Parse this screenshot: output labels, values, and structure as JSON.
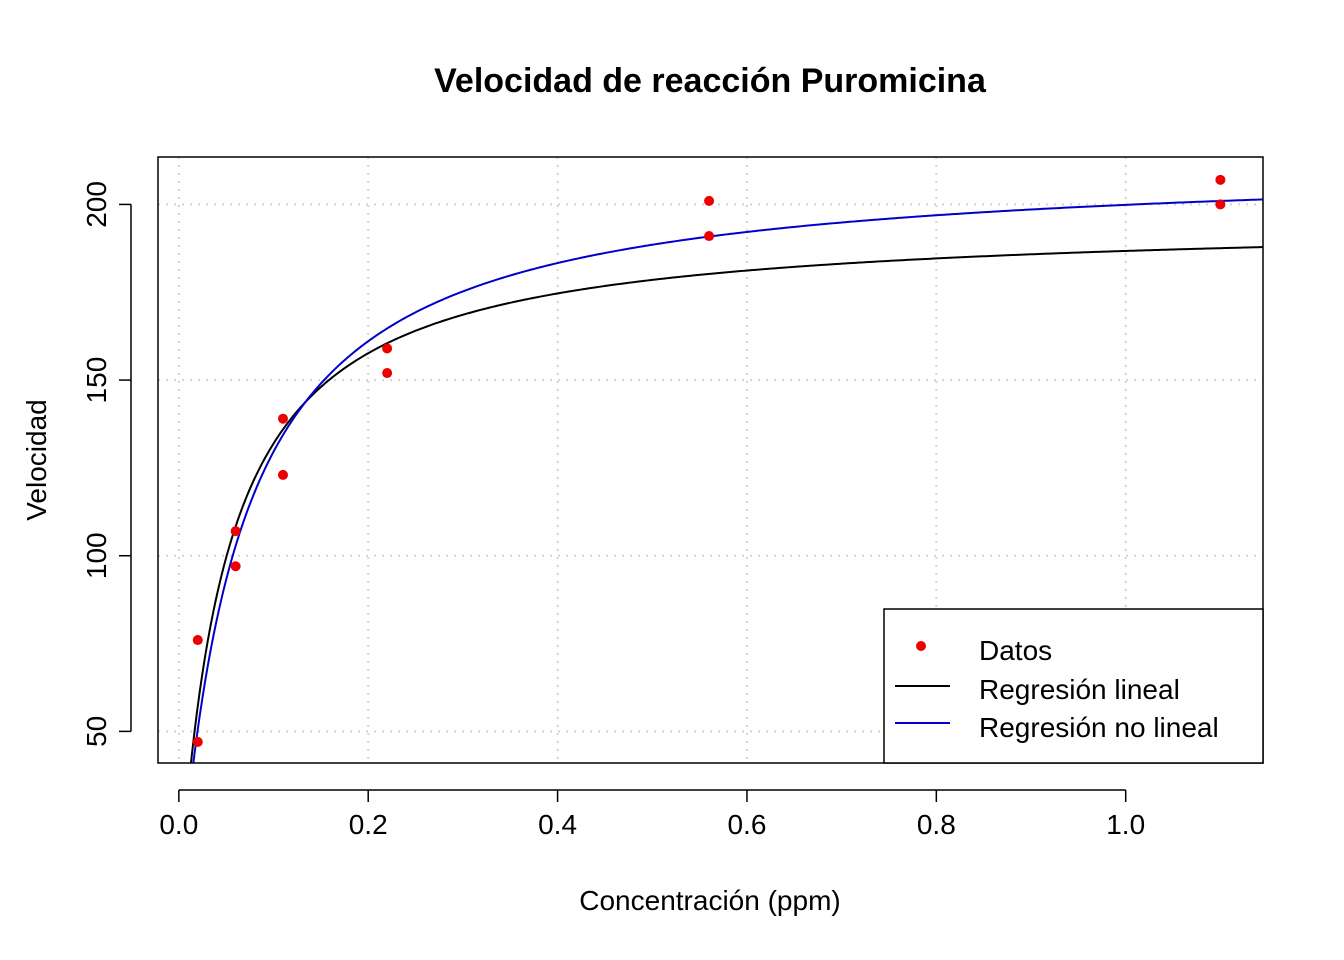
{
  "chart_data": {
    "type": "scatter",
    "title": "Velocidad de reacción Puromicina",
    "xlabel": "Concentración (ppm)",
    "ylabel": "Velocidad",
    "xlim": [
      -0.022,
      1.145
    ],
    "ylim": [
      41,
      213.5
    ],
    "x_ticks": [
      0.0,
      0.2,
      0.4,
      0.6,
      0.8,
      1.0
    ],
    "x_tick_labels": [
      "0.0",
      "0.2",
      "0.4",
      "0.6",
      "0.8",
      "1.0"
    ],
    "y_ticks": [
      50,
      100,
      150,
      200
    ],
    "y_tick_labels": [
      "50",
      "100",
      "150",
      "200"
    ],
    "grid": true,
    "legend_position": "bottom-right",
    "points": {
      "name": "Datos",
      "color": "#ee0000",
      "x": [
        0.02,
        0.02,
        0.06,
        0.06,
        0.11,
        0.11,
        0.22,
        0.22,
        0.56,
        0.56,
        1.1,
        1.1
      ],
      "y": [
        76,
        47,
        97,
        107,
        123,
        139,
        159,
        152,
        191,
        201,
        207,
        200
      ]
    },
    "curves": [
      {
        "name": "Regresión lineal",
        "color": "#000000",
        "vmax": 195.8,
        "km": 0.04841
      },
      {
        "name": "Regresión no lineal",
        "color": "#0000cc",
        "vmax": 212.7,
        "km": 0.06412
      }
    ]
  }
}
